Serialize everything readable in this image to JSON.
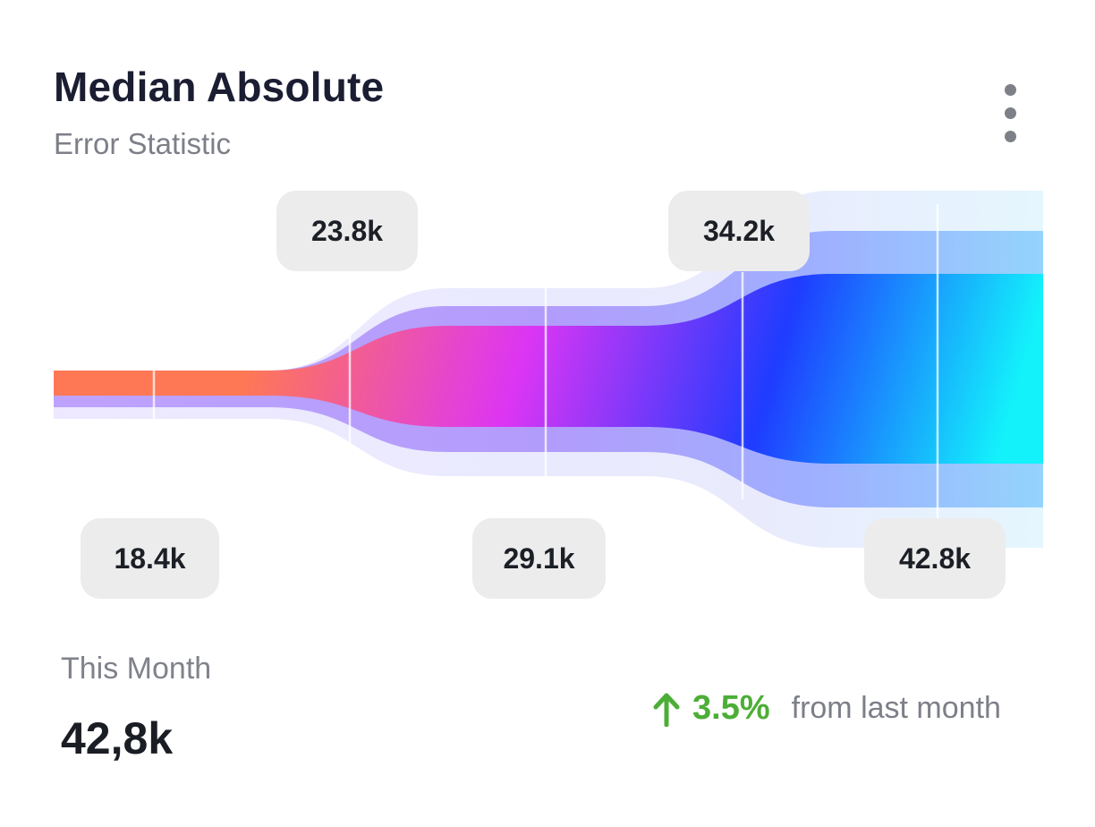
{
  "card": {
    "title": "Median Absolute",
    "subtitle": "Error Statistic",
    "menu_icon": "more-vertical-icon"
  },
  "chart_data": {
    "type": "area",
    "title": "Median Absolute",
    "subtitle": "Error Statistic",
    "labels": [
      "18.4k",
      "23.8k",
      "29.1k",
      "34.2k",
      "42.8k"
    ],
    "values": [
      18.4,
      23.8,
      29.1,
      34.2,
      42.8
    ],
    "unit": "k",
    "colors": {
      "start": "#ff7855",
      "mid": "#dd35f4",
      "deep": "#1f3cff",
      "end": "#13f1fb"
    }
  },
  "summary": {
    "label": "This Month",
    "value": "42,8k",
    "change": "3.5%",
    "change_text": "from last month",
    "trend_icon": "arrow-up-icon",
    "trend_color": "#4cae36"
  }
}
